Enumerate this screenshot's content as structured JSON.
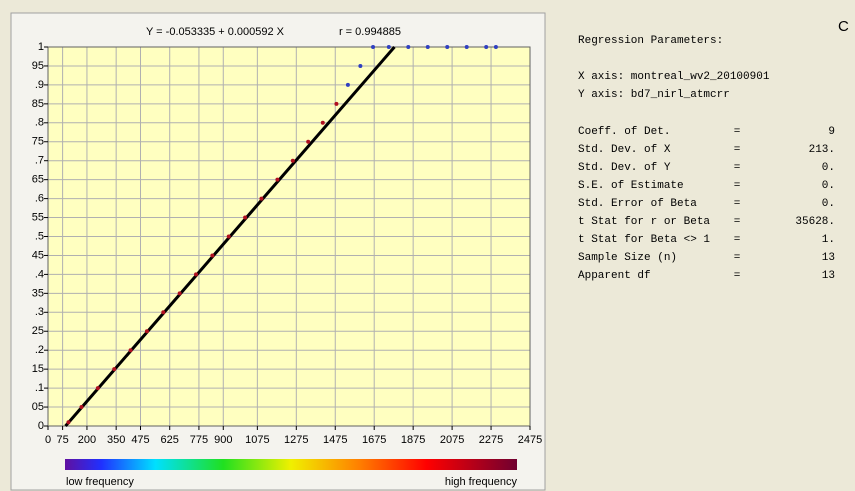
{
  "corner_label": "C",
  "chart_data": {
    "type": "scatter",
    "title": "Y = -0.053335 + 0.000592 X",
    "subtitle": "r = 0.994885",
    "xlim": [
      0,
      2475
    ],
    "ylim": [
      0,
      1
    ],
    "xticks": [
      0,
      75,
      200,
      350,
      475,
      625,
      775,
      900,
      1075,
      1275,
      1475,
      1675,
      1875,
      2075,
      2275,
      2475
    ],
    "yticks": [
      0,
      {
        "value": 0.05,
        "label": "05"
      },
      {
        "value": 0.1,
        "label": ".1"
      },
      {
        "value": 0.15,
        "label": "15"
      },
      {
        "value": 0.2,
        "label": ".2"
      },
      {
        "value": 0.25,
        "label": "25"
      },
      {
        "value": 0.3,
        "label": ".3"
      },
      {
        "value": 0.35,
        "label": "35"
      },
      {
        "value": 0.4,
        "label": ".4"
      },
      {
        "value": 0.45,
        "label": "45"
      },
      {
        "value": 0.5,
        "label": ".5"
      },
      {
        "value": 0.55,
        "label": "55"
      },
      {
        "value": 0.6,
        "label": ".6"
      },
      {
        "value": 0.65,
        "label": "65"
      },
      {
        "value": 0.7,
        "label": ".7"
      },
      {
        "value": 0.75,
        "label": "75"
      },
      {
        "value": 0.8,
        "label": ".8"
      },
      {
        "value": 0.85,
        "label": "85"
      },
      {
        "value": 0.9,
        "label": ".9"
      },
      {
        "value": 0.95,
        "label": "95"
      },
      1
    ],
    "grid": true,
    "series": [
      {
        "color": "#b01020",
        "x": [
          105,
          172,
          256,
          340,
          424,
          508,
          592,
          676,
          760,
          844,
          928,
          1012,
          1096,
          1178,
          1257,
          1336,
          1411,
          1481
        ],
        "y": [
          0.01,
          0.05,
          0.1,
          0.15,
          0.2,
          0.25,
          0.3,
          0.35,
          0.4,
          0.45,
          0.5,
          0.55,
          0.6,
          0.65,
          0.7,
          0.75,
          0.8,
          0.85
        ]
      },
      {
        "color": "#3040c0",
        "x": [
          1540,
          1604,
          1669,
          1750,
          1850,
          1950,
          2050,
          2150,
          2250,
          2300
        ],
        "y": [
          0.9,
          0.95,
          1,
          1,
          1,
          1,
          1,
          1,
          1,
          1
        ]
      }
    ],
    "lines": [
      {
        "color": "#000000",
        "x": [
          90,
          1779
        ],
        "y": [
          0,
          1
        ]
      }
    ],
    "colorbar": {
      "low": "low frequency",
      "high": "high frequency"
    }
  },
  "regression_panel": {
    "heading": "Regression Parameters:",
    "x_axis": "X axis: montreal_wv2_20100901",
    "y_axis": "Y axis: bd7_nirl_atmcrr",
    "rows": [
      [
        "Coeff. of Det.",
        "=",
        "9"
      ],
      [
        "Std. Dev. of X",
        "=",
        "213."
      ],
      [
        "Std. Dev. of Y",
        "=",
        "0."
      ],
      [
        "S.E. of Estimate",
        "=",
        "0."
      ],
      [
        "Std. Error of Beta",
        "=",
        "0."
      ],
      [
        "t Stat for r or Beta",
        "=",
        "35628."
      ],
      [
        "t Stat for Beta <> 1",
        "=",
        "1."
      ],
      [
        "Sample Size (n)",
        "=",
        "13"
      ],
      [
        "Apparent df",
        "=",
        "13"
      ]
    ]
  }
}
